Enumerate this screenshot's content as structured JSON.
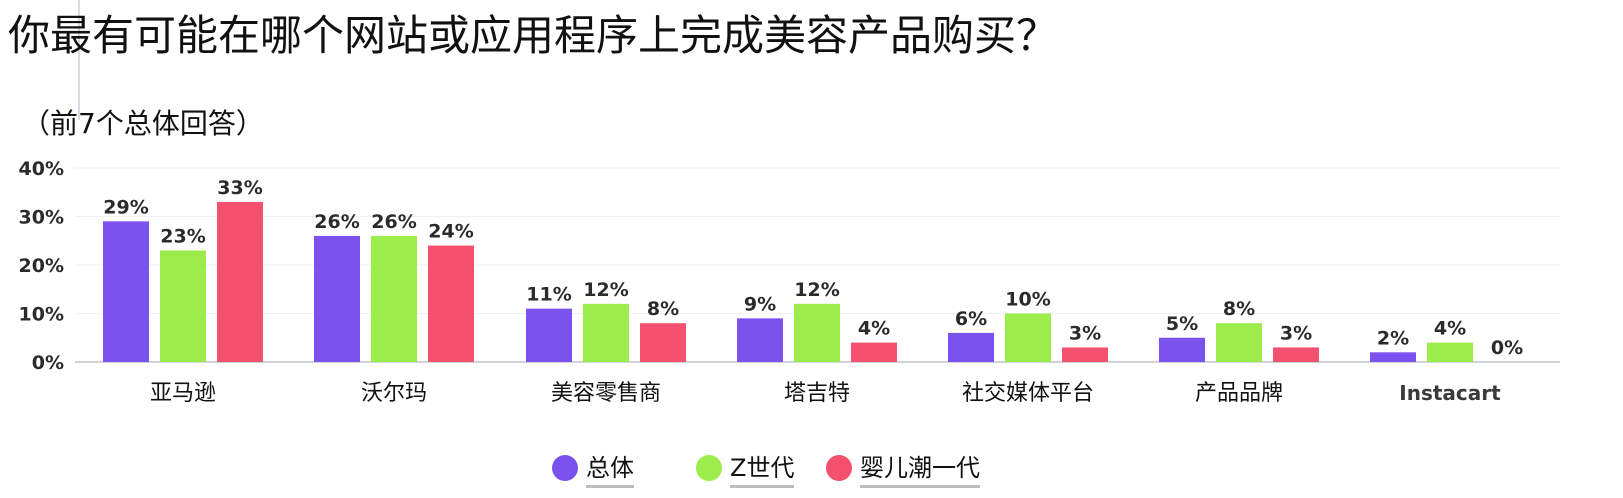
{
  "title": "你最有可能在哪个网站或应用程序上完成美容产品购买？",
  "subtitle": "（前7个总体回答）",
  "colors": {
    "overall": "#7c52ef",
    "genz": "#9cec4b",
    "millennial": "#f4516f"
  },
  "chart_data": {
    "type": "bar",
    "categories": [
      "亚马逊",
      "沃尔玛",
      "美容零售商",
      "塔吉特",
      "社交媒体平台",
      "产品品牌",
      "Instacart"
    ],
    "series": [
      {
        "name": "总体",
        "values": [
          29,
          26,
          11,
          9,
          6,
          5,
          2
        ],
        "labels": [
          "29%",
          "26%",
          "11%",
          "9%",
          "6%",
          "5%",
          "2%"
        ]
      },
      {
        "name": "Z世代",
        "values": [
          23,
          26,
          12,
          12,
          10,
          8,
          4
        ],
        "labels": [
          "23%",
          "26%",
          "12%",
          "12%",
          "10%",
          "8%",
          "4%"
        ]
      },
      {
        "name": "婴儿潮一代",
        "values": [
          33,
          24,
          8,
          4,
          3,
          3,
          0
        ],
        "labels": [
          "33%",
          "24%",
          "8%",
          "4%",
          "3%",
          "3%",
          "0%"
        ]
      }
    ],
    "yticks": [
      "0%",
      "10%",
      "20%",
      "30%",
      "40%"
    ],
    "ylim": [
      0,
      40
    ],
    "grid": true,
    "legend": "bottom-center"
  }
}
